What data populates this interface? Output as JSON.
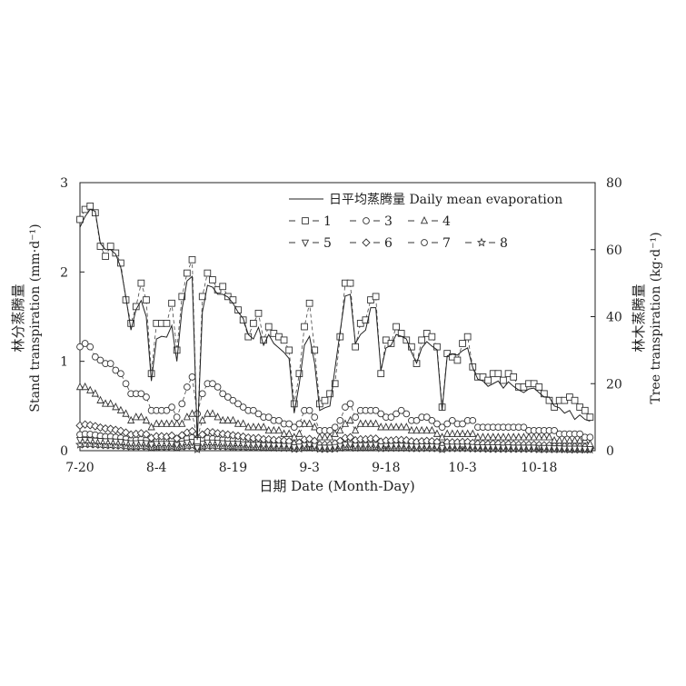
{
  "chart_data": {
    "type": "line",
    "xlabel": "日期 Date (Month-Day)",
    "ylabel_left": [
      "林分蒸腾量",
      "Stand transpiration (mm·d⁻¹)"
    ],
    "ylabel_right": [
      "林木蒸腾量",
      "Tree transpiration (kg·d⁻¹)"
    ],
    "xlim": [
      0,
      101
    ],
    "ylim_left": [
      0,
      3
    ],
    "ylim_right": [
      0,
      80
    ],
    "x_ticks": [
      {
        "pos": 0,
        "label": "7-20"
      },
      {
        "pos": 15,
        "label": "8-4"
      },
      {
        "pos": 30,
        "label": "8-19"
      },
      {
        "pos": 45,
        "label": "9-3"
      },
      {
        "pos": 60,
        "label": "9-18"
      },
      {
        "pos": 75,
        "label": "10-3"
      },
      {
        "pos": 90,
        "label": "10-18"
      }
    ],
    "y_ticks_left": [
      "0",
      "1",
      "2",
      "3"
    ],
    "y_ticks_right": [
      "0",
      "20",
      "40",
      "60",
      "80"
    ],
    "grid": false,
    "legend_position": "top-right",
    "legend": {
      "daily": "日平均蒸腾量 Daily mean evaporation",
      "trees": [
        {
          "name": "1",
          "marker": "square"
        },
        {
          "name": "3",
          "marker": "circle"
        },
        {
          "name": "4",
          "marker": "triangle-up"
        },
        {
          "name": "5",
          "marker": "triangle-down"
        },
        {
          "name": "6",
          "marker": "diamond"
        },
        {
          "name": "7",
          "marker": "circle"
        },
        {
          "name": "8",
          "marker": "star"
        }
      ]
    },
    "series_axes": {
      "daily_mean": "left (mm·d⁻¹)",
      "trees": "right (kg·d⁻¹)"
    },
    "series": [
      {
        "name": "日平均蒸腾量 Daily mean evaporation",
        "marker": "none",
        "axis": "left",
        "values": [
          2.5,
          2.62,
          2.7,
          2.68,
          2.32,
          2.25,
          2.25,
          2.2,
          2.05,
          1.72,
          1.35,
          1.58,
          1.68,
          1.5,
          0.78,
          1.25,
          1.28,
          1.27,
          1.4,
          1.0,
          1.58,
          1.9,
          1.95,
          0.12,
          1.55,
          1.85,
          1.83,
          1.75,
          1.75,
          1.72,
          1.65,
          1.55,
          1.48,
          1.3,
          1.25,
          1.38,
          1.18,
          1.3,
          1.2,
          1.15,
          1.1,
          1.03,
          0.42,
          0.75,
          1.18,
          1.28,
          0.98,
          0.45,
          0.48,
          0.5,
          0.92,
          1.33,
          1.73,
          1.75,
          1.2,
          1.3,
          1.35,
          1.6,
          1.6,
          0.9,
          1.15,
          1.18,
          1.3,
          1.28,
          1.25,
          1.1,
          0.98,
          1.15,
          1.22,
          1.17,
          1.13,
          0.45,
          1.06,
          1.08,
          1.07,
          1.12,
          1.15,
          0.93,
          0.8,
          0.78,
          0.72,
          0.75,
          0.78,
          0.7,
          0.77,
          0.72,
          0.68,
          0.65,
          0.69,
          0.7,
          0.65,
          0.6,
          0.6,
          0.5,
          0.48,
          0.42,
          0.45,
          0.35,
          0.4,
          0.35,
          0.33
        ]
      },
      {
        "name": "1",
        "marker": "square",
        "axis": "right",
        "values": [
          69,
          72,
          73,
          71,
          61,
          58,
          61,
          59,
          56,
          45,
          38,
          43,
          50,
          45,
          23,
          38,
          38,
          38,
          44,
          30,
          46,
          53,
          57,
          3,
          46,
          53,
          51,
          48,
          49,
          46,
          45,
          42,
          39,
          34,
          38,
          41,
          33,
          37,
          35,
          34,
          33,
          30,
          14,
          23,
          37,
          44,
          30,
          14,
          15,
          17,
          20,
          34,
          50,
          50,
          31,
          38,
          39,
          45,
          46,
          23,
          33,
          32,
          37,
          35,
          33,
          31,
          26,
          33,
          35,
          34,
          31,
          13,
          29,
          28,
          27,
          32,
          34,
          25,
          22,
          22,
          21,
          23,
          23,
          21,
          23,
          22,
          19,
          19,
          20,
          20,
          19,
          17,
          15,
          13,
          15,
          15,
          16,
          15,
          13,
          12,
          10
        ]
      },
      {
        "name": "3",
        "marker": "circle",
        "axis": "right",
        "values": [
          31,
          32,
          31,
          28,
          27,
          26,
          26,
          24,
          23,
          20,
          17,
          17,
          17,
          16,
          12,
          12,
          12,
          12,
          13,
          10,
          14,
          19,
          22,
          11,
          17,
          20,
          20,
          19,
          17,
          16,
          15,
          14,
          13,
          12,
          12,
          11,
          10,
          10,
          9,
          9,
          8,
          8,
          7,
          8,
          12,
          12,
          10,
          6,
          6,
          6,
          7,
          9,
          13,
          14,
          10,
          12,
          12,
          12,
          12,
          11,
          10,
          10,
          11,
          12,
          11,
          9,
          9,
          10,
          10,
          9,
          8,
          7,
          8,
          9,
          8,
          8,
          9,
          9,
          7,
          7,
          7,
          7,
          7,
          7,
          7,
          7,
          7,
          7,
          6,
          6,
          6,
          6,
          6,
          6,
          5,
          5,
          5,
          5,
          5,
          4,
          4
        ]
      },
      {
        "name": "4",
        "marker": "triangle-up",
        "axis": "right",
        "values": [
          19,
          19,
          18,
          17,
          15,
          14,
          14,
          13,
          12,
          11,
          9,
          10,
          10,
          9,
          7,
          8,
          8,
          8,
          8,
          8,
          8,
          10,
          11,
          4,
          9,
          11,
          11,
          10,
          9,
          9,
          9,
          8,
          8,
          7,
          7,
          7,
          7,
          6,
          6,
          6,
          5,
          5,
          4,
          5,
          8,
          8,
          7,
          4,
          4,
          4,
          5,
          6,
          8,
          9,
          6,
          8,
          8,
          8,
          8,
          7,
          7,
          7,
          7,
          7,
          7,
          6,
          6,
          6,
          6,
          6,
          5,
          4,
          5,
          5,
          5,
          5,
          5,
          5,
          4,
          4,
          4,
          4,
          4,
          4,
          4,
          4,
          4,
          4,
          4,
          4,
          4,
          4,
          4,
          3,
          3,
          3,
          3,
          3,
          3,
          3,
          2
        ]
      },
      {
        "name": "5",
        "marker": "triangle-down",
        "axis": "right",
        "values": [
          3.2,
          3.2,
          3.1,
          3.0,
          2.9,
          2.8,
          2.8,
          2.7,
          2.6,
          2.4,
          2.2,
          2.2,
          2.3,
          2.2,
          1.8,
          2.0,
          2.0,
          2.0,
          2.1,
          1.7,
          2.1,
          2.4,
          2.6,
          0.8,
          2.1,
          2.4,
          2.4,
          2.3,
          2.2,
          2.1,
          2.1,
          2.0,
          1.9,
          1.8,
          1.7,
          1.8,
          1.6,
          1.6,
          1.5,
          1.5,
          1.4,
          1.4,
          1.0,
          1.2,
          1.6,
          1.7,
          1.4,
          0.9,
          0.9,
          0.9,
          1.1,
          1.4,
          1.8,
          1.9,
          1.5,
          1.6,
          1.6,
          1.7,
          1.7,
          1.3,
          1.4,
          1.4,
          1.5,
          1.5,
          1.4,
          1.3,
          1.2,
          1.3,
          1.3,
          1.3,
          1.2,
          0.8,
          1.2,
          1.2,
          1.2,
          1.2,
          1.2,
          1.1,
          1.0,
          1.0,
          1.0,
          1.0,
          1.0,
          0.9,
          1.0,
          0.9,
          0.9,
          0.9,
          0.9,
          0.9,
          0.8,
          0.8,
          0.8,
          0.7,
          0.7,
          0.6,
          0.6,
          0.6,
          0.6,
          0.5,
          0.5
        ]
      },
      {
        "name": "6",
        "marker": "diamond",
        "axis": "right",
        "values": [
          7.5,
          7.8,
          7.6,
          7.3,
          6.9,
          6.6,
          6.5,
          6.2,
          5.9,
          5.4,
          4.8,
          5.0,
          5.2,
          4.9,
          3.8,
          4.3,
          4.3,
          4.2,
          4.5,
          3.6,
          4.6,
          5.4,
          5.8,
          2.0,
          4.8,
          5.6,
          5.5,
          5.2,
          5.0,
          4.8,
          4.6,
          4.4,
          4.2,
          3.9,
          3.7,
          3.8,
          3.4,
          3.4,
          3.2,
          3.1,
          3.0,
          2.8,
          2.0,
          2.4,
          3.3,
          3.5,
          2.9,
          1.8,
          1.8,
          1.8,
          2.2,
          2.9,
          3.8,
          4.0,
          3.1,
          3.4,
          3.4,
          3.6,
          3.6,
          2.7,
          3.0,
          3.0,
          3.2,
          3.2,
          3.1,
          2.8,
          2.6,
          2.8,
          2.9,
          2.8,
          2.6,
          1.6,
          2.5,
          2.5,
          2.5,
          2.6,
          2.6,
          2.3,
          2.1,
          2.1,
          2.0,
          2.1,
          2.1,
          1.9,
          2.0,
          1.9,
          1.8,
          1.8,
          1.8,
          1.8,
          1.7,
          1.6,
          1.6,
          1.4,
          1.4,
          1.3,
          1.3,
          1.2,
          1.2,
          1.1,
          1.0
        ]
      },
      {
        "name": "7",
        "marker": "circle",
        "axis": "right",
        "values": [
          4.8,
          5.0,
          4.9,
          4.7,
          4.4,
          4.2,
          4.2,
          4.0,
          3.8,
          3.5,
          3.1,
          3.2,
          3.4,
          3.2,
          2.4,
          2.8,
          2.8,
          2.8,
          3.0,
          2.3,
          3.0,
          3.6,
          3.9,
          1.2,
          3.2,
          3.7,
          3.6,
          3.4,
          3.3,
          3.2,
          3.1,
          2.9,
          2.8,
          2.6,
          2.5,
          2.6,
          2.3,
          2.3,
          2.2,
          2.1,
          2.0,
          1.9,
          1.3,
          1.6,
          2.2,
          2.4,
          2.0,
          1.2,
          1.2,
          1.2,
          1.5,
          2.0,
          2.6,
          2.7,
          2.1,
          2.3,
          2.3,
          2.5,
          2.5,
          1.8,
          2.0,
          2.0,
          2.2,
          2.2,
          2.1,
          1.9,
          1.8,
          1.9,
          2.0,
          1.9,
          1.8,
          1.1,
          1.7,
          1.7,
          1.7,
          1.8,
          1.8,
          1.6,
          1.4,
          1.4,
          1.4,
          1.4,
          1.4,
          1.3,
          1.4,
          1.3,
          1.2,
          1.2,
          1.2,
          1.2,
          1.1,
          1.1,
          1.1,
          1.0,
          1.0,
          0.9,
          0.9,
          0.8,
          0.8,
          0.8,
          0.7
        ]
      },
      {
        "name": "8",
        "marker": "star",
        "axis": "right",
        "values": [
          1.8,
          1.9,
          1.9,
          1.8,
          1.7,
          1.6,
          1.6,
          1.5,
          1.5,
          1.3,
          1.2,
          1.2,
          1.3,
          1.2,
          0.9,
          1.1,
          1.1,
          1.1,
          1.2,
          0.9,
          1.2,
          1.4,
          1.5,
          0.4,
          1.2,
          1.4,
          1.4,
          1.3,
          1.3,
          1.2,
          1.2,
          1.1,
          1.1,
          1.0,
          1.0,
          1.0,
          0.9,
          0.9,
          0.9,
          0.8,
          0.8,
          0.8,
          0.5,
          0.6,
          0.9,
          0.9,
          0.8,
          0.5,
          0.5,
          0.5,
          0.6,
          0.8,
          1.0,
          1.0,
          0.8,
          0.9,
          0.9,
          0.9,
          1.0,
          0.7,
          0.8,
          0.8,
          0.8,
          0.8,
          0.8,
          0.7,
          0.7,
          0.7,
          0.8,
          0.7,
          0.7,
          0.4,
          0.7,
          0.7,
          0.7,
          0.7,
          0.7,
          0.6,
          0.6,
          0.6,
          0.5,
          0.5,
          0.5,
          0.5,
          0.5,
          0.5,
          0.5,
          0.5,
          0.5,
          0.5,
          0.4,
          0.4,
          0.4,
          0.4,
          0.4,
          0.4,
          0.3,
          0.3,
          0.3,
          0.3,
          0.3
        ]
      }
    ]
  }
}
